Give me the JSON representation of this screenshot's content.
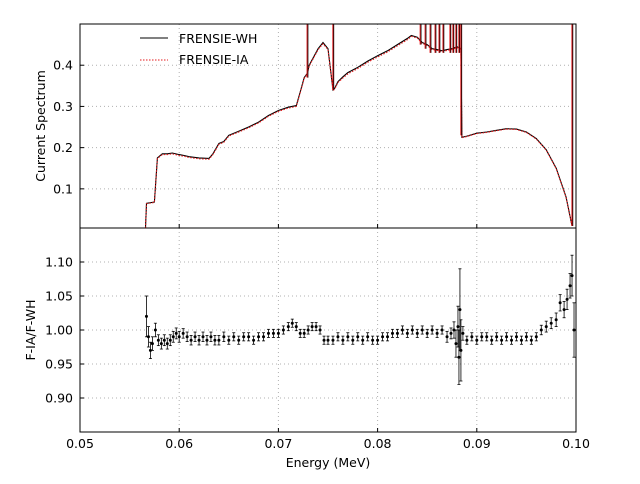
{
  "chart_data": [
    {
      "type": "line",
      "ylabel": "Current Spectrum",
      "xlim": [
        0.05,
        0.1
      ],
      "ylim": [
        0.005,
        0.5
      ],
      "yticks": [
        0.1,
        0.2,
        0.3,
        0.4
      ],
      "ytick_labels": [
        "0.1",
        "0.2",
        "0.3",
        "0.4"
      ],
      "xticks": [
        0.05,
        0.06,
        0.07,
        0.08,
        0.09,
        0.1
      ],
      "grid": true,
      "legend_position": "top-left",
      "series": [
        {
          "name": "FRENSIE-WH",
          "color": "#000000",
          "style": "solid",
          "x": [
            0.0566,
            0.0567,
            0.0575,
            0.0578,
            0.0583,
            0.0588,
            0.0593,
            0.06,
            0.0605,
            0.061,
            0.062,
            0.063,
            0.0634,
            0.064,
            0.0645,
            0.065,
            0.066,
            0.067,
            0.068,
            0.069,
            0.07,
            0.071,
            0.0718,
            0.0722,
            0.0726,
            0.0729,
            0.0731,
            0.074,
            0.0745,
            0.075,
            0.0755,
            0.0757,
            0.076,
            0.0765,
            0.077,
            0.078,
            0.079,
            0.08,
            0.081,
            0.082,
            0.083,
            0.0834,
            0.084,
            0.0845,
            0.085,
            0.0855,
            0.086,
            0.0865,
            0.087,
            0.0875,
            0.088,
            0.0884,
            0.0885,
            0.089,
            0.09,
            0.091,
            0.092,
            0.093,
            0.094,
            0.095,
            0.096,
            0.097,
            0.098,
            0.099,
            0.0996
          ],
          "y": [
            0.005,
            0.065,
            0.068,
            0.175,
            0.185,
            0.185,
            0.187,
            0.183,
            0.181,
            0.178,
            0.175,
            0.174,
            0.185,
            0.21,
            0.215,
            0.23,
            0.24,
            0.25,
            0.262,
            0.278,
            0.29,
            0.298,
            0.302,
            0.335,
            0.37,
            0.38,
            0.4,
            0.44,
            0.455,
            0.44,
            0.34,
            0.345,
            0.36,
            0.372,
            0.382,
            0.395,
            0.41,
            0.423,
            0.435,
            0.45,
            0.465,
            0.472,
            0.468,
            0.455,
            0.45,
            0.44,
            0.438,
            0.435,
            0.438,
            0.44,
            0.445,
            0.44,
            0.225,
            0.228,
            0.235,
            0.238,
            0.242,
            0.246,
            0.245,
            0.238,
            0.222,
            0.195,
            0.15,
            0.08,
            0.01
          ]
        },
        {
          "name": "FRENSIE-IA",
          "color": "#e41a1c",
          "style": "dotted",
          "x": [
            0.0566,
            0.0567,
            0.0575,
            0.0578,
            0.0583,
            0.0588,
            0.0593,
            0.06,
            0.0605,
            0.061,
            0.062,
            0.063,
            0.0634,
            0.064,
            0.0645,
            0.065,
            0.066,
            0.067,
            0.068,
            0.069,
            0.07,
            0.071,
            0.0718,
            0.0722,
            0.0726,
            0.0729,
            0.0731,
            0.074,
            0.0745,
            0.075,
            0.0755,
            0.0757,
            0.076,
            0.0765,
            0.077,
            0.078,
            0.079,
            0.08,
            0.081,
            0.082,
            0.083,
            0.0834,
            0.084,
            0.0845,
            0.085,
            0.0855,
            0.086,
            0.0865,
            0.087,
            0.0875,
            0.088,
            0.0884,
            0.0885,
            0.089,
            0.09,
            0.091,
            0.092,
            0.093,
            0.094,
            0.095,
            0.096,
            0.097,
            0.098,
            0.099,
            0.0996
          ],
          "y": [
            0.005,
            0.064,
            0.067,
            0.174,
            0.183,
            0.183,
            0.185,
            0.181,
            0.179,
            0.176,
            0.173,
            0.172,
            0.183,
            0.208,
            0.213,
            0.228,
            0.238,
            0.248,
            0.26,
            0.276,
            0.288,
            0.296,
            0.3,
            0.333,
            0.368,
            0.378,
            0.398,
            0.438,
            0.452,
            0.438,
            0.338,
            0.343,
            0.358,
            0.369,
            0.379,
            0.392,
            0.407,
            0.42,
            0.432,
            0.447,
            0.462,
            0.47,
            0.466,
            0.453,
            0.448,
            0.438,
            0.436,
            0.433,
            0.436,
            0.438,
            0.443,
            0.438,
            0.224,
            0.227,
            0.234,
            0.237,
            0.241,
            0.245,
            0.244,
            0.237,
            0.221,
            0.194,
            0.149,
            0.079,
            0.01
          ]
        }
      ],
      "spikes": [
        {
          "x": 0.0729,
          "ymin": 0.37,
          "ymax": 0.5
        },
        {
          "x": 0.0755,
          "ymin": 0.34,
          "ymax": 0.5
        },
        {
          "x": 0.0843,
          "ymin": 0.45,
          "ymax": 0.5
        },
        {
          "x": 0.0848,
          "ymin": 0.44,
          "ymax": 0.5
        },
        {
          "x": 0.0853,
          "ymin": 0.43,
          "ymax": 0.5
        },
        {
          "x": 0.0858,
          "ymin": 0.43,
          "ymax": 0.5
        },
        {
          "x": 0.0862,
          "ymin": 0.43,
          "ymax": 0.5
        },
        {
          "x": 0.0866,
          "ymin": 0.43,
          "ymax": 0.5
        },
        {
          "x": 0.0873,
          "ymin": 0.43,
          "ymax": 0.5
        },
        {
          "x": 0.0876,
          "ymin": 0.43,
          "ymax": 0.5
        },
        {
          "x": 0.0879,
          "ymin": 0.43,
          "ymax": 0.5
        },
        {
          "x": 0.0882,
          "ymin": 0.43,
          "ymax": 0.5
        },
        {
          "x": 0.0884,
          "ymin": 0.23,
          "ymax": 0.5
        },
        {
          "x": 0.0996,
          "ymin": 0.01,
          "ymax": 0.5
        }
      ]
    },
    {
      "type": "scatter",
      "xlabel": "Energy (MeV)",
      "ylabel": "F-IA/F-WH",
      "xlim": [
        0.05,
        0.1
      ],
      "ylim": [
        0.85,
        1.15
      ],
      "xticks": [
        0.05,
        0.06,
        0.07,
        0.08,
        0.09,
        0.1
      ],
      "xtick_labels": [
        "0.05",
        "0.06",
        "0.07",
        "0.08",
        "0.09",
        "0.10"
      ],
      "yticks": [
        0.9,
        0.95,
        1.0,
        1.05,
        1.1
      ],
      "ytick_labels": [
        "0.90",
        "0.95",
        "1.00",
        "1.05",
        "1.10"
      ],
      "grid": true,
      "color": "#000000",
      "x": [
        0.0567,
        0.0569,
        0.0571,
        0.0573,
        0.0576,
        0.0579,
        0.0582,
        0.0585,
        0.0588,
        0.0591,
        0.0594,
        0.0597,
        0.06,
        0.0604,
        0.0608,
        0.0612,
        0.0616,
        0.062,
        0.0624,
        0.0628,
        0.0632,
        0.0636,
        0.064,
        0.0645,
        0.065,
        0.0655,
        0.066,
        0.0665,
        0.067,
        0.0675,
        0.068,
        0.0685,
        0.069,
        0.0695,
        0.07,
        0.0705,
        0.071,
        0.0714,
        0.0718,
        0.0722,
        0.0726,
        0.073,
        0.0734,
        0.0738,
        0.0742,
        0.0746,
        0.075,
        0.0755,
        0.076,
        0.0765,
        0.077,
        0.0775,
        0.078,
        0.0785,
        0.079,
        0.0795,
        0.08,
        0.0805,
        0.081,
        0.0815,
        0.082,
        0.0825,
        0.083,
        0.0835,
        0.084,
        0.0845,
        0.085,
        0.0855,
        0.086,
        0.0865,
        0.087,
        0.0874,
        0.0877,
        0.0879,
        0.0881,
        0.0882,
        0.0883,
        0.0884,
        0.0886,
        0.089,
        0.0895,
        0.09,
        0.0905,
        0.091,
        0.0915,
        0.092,
        0.0925,
        0.093,
        0.0935,
        0.094,
        0.0945,
        0.095,
        0.0955,
        0.096,
        0.0965,
        0.097,
        0.0975,
        0.098,
        0.0984,
        0.0988,
        0.0991,
        0.0994,
        0.0996,
        0.0998
      ],
      "y": [
        1.02,
        0.99,
        0.97,
        0.98,
        1.0,
        0.985,
        0.98,
        0.985,
        0.98,
        0.985,
        0.99,
        0.995,
        0.99,
        0.995,
        0.99,
        0.985,
        0.99,
        0.985,
        0.99,
        0.985,
        0.99,
        0.985,
        0.985,
        0.99,
        0.985,
        0.99,
        0.985,
        0.99,
        0.99,
        0.985,
        0.99,
        0.99,
        0.995,
        0.995,
        0.995,
        1.0,
        1.005,
        1.01,
        1.005,
        0.995,
        0.995,
        1.0,
        1.005,
        1.005,
        1.0,
        0.985,
        0.985,
        0.985,
        0.99,
        0.985,
        0.99,
        0.985,
        0.99,
        0.985,
        0.99,
        0.985,
        0.985,
        0.99,
        0.99,
        0.995,
        0.995,
        1.0,
        0.995,
        1.0,
        0.995,
        1.0,
        0.995,
        1.0,
        0.995,
        1.0,
        0.99,
        0.995,
        1.0,
        0.98,
        1.005,
        0.96,
        1.03,
        0.97,
        0.995,
        0.985,
        0.99,
        0.985,
        0.99,
        0.99,
        0.985,
        0.99,
        0.985,
        0.99,
        0.985,
        0.99,
        0.985,
        0.99,
        0.985,
        0.99,
        1.0,
        1.005,
        1.01,
        1.015,
        1.04,
        1.03,
        1.045,
        1.065,
        1.08,
        1.0
      ],
      "err": [
        0.03,
        0.015,
        0.012,
        0.01,
        0.01,
        0.008,
        0.008,
        0.008,
        0.008,
        0.008,
        0.008,
        0.008,
        0.008,
        0.007,
        0.007,
        0.007,
        0.007,
        0.007,
        0.007,
        0.007,
        0.007,
        0.007,
        0.007,
        0.007,
        0.006,
        0.006,
        0.006,
        0.006,
        0.006,
        0.006,
        0.006,
        0.006,
        0.006,
        0.006,
        0.006,
        0.006,
        0.006,
        0.006,
        0.006,
        0.006,
        0.006,
        0.006,
        0.006,
        0.006,
        0.006,
        0.006,
        0.006,
        0.006,
        0.006,
        0.006,
        0.006,
        0.006,
        0.006,
        0.006,
        0.006,
        0.006,
        0.006,
        0.006,
        0.006,
        0.006,
        0.006,
        0.006,
        0.006,
        0.006,
        0.006,
        0.006,
        0.006,
        0.006,
        0.006,
        0.006,
        0.008,
        0.008,
        0.012,
        0.02,
        0.03,
        0.04,
        0.06,
        0.045,
        0.01,
        0.006,
        0.006,
        0.006,
        0.006,
        0.006,
        0.006,
        0.006,
        0.006,
        0.006,
        0.006,
        0.006,
        0.006,
        0.006,
        0.006,
        0.006,
        0.007,
        0.008,
        0.008,
        0.01,
        0.012,
        0.012,
        0.015,
        0.018,
        0.03,
        0.04
      ]
    }
  ]
}
